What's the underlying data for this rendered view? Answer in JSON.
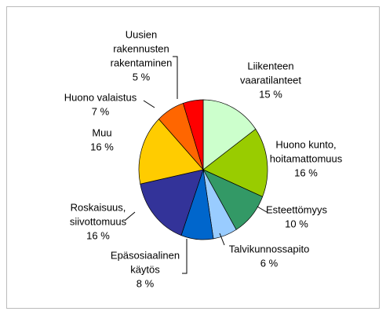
{
  "chart_data": {
    "type": "pie",
    "categories": [
      [
        "Liikenteen",
        "vaaratilanteet"
      ],
      [
        "Huono kunto,",
        "hoitamattomuus"
      ],
      [
        "Esteettömyys"
      ],
      [
        "Talvikunnossapito"
      ],
      [
        "Epäsosiaalinen",
        "käytös"
      ],
      [
        "Roskaisuus,",
        "siivottomuus"
      ],
      [
        "Muu"
      ],
      [
        "Huono valaistus"
      ],
      [
        "Uusien",
        "rakennusten",
        "rakentaminen"
      ]
    ],
    "values": [
      15,
      16,
      10,
      6,
      8,
      16,
      16,
      7,
      5
    ],
    "value_labels": [
      "15 %",
      "16 %",
      "10 %",
      "6 %",
      "8 %",
      "16 %",
      "16 %",
      "7 %",
      "5 %"
    ],
    "colors": [
      "#ccffcc",
      "#99cc00",
      "#339966",
      "#99ccff",
      "#0066cc",
      "#333399",
      "#ffcc00",
      "#ff6600",
      "#ff0000"
    ]
  }
}
